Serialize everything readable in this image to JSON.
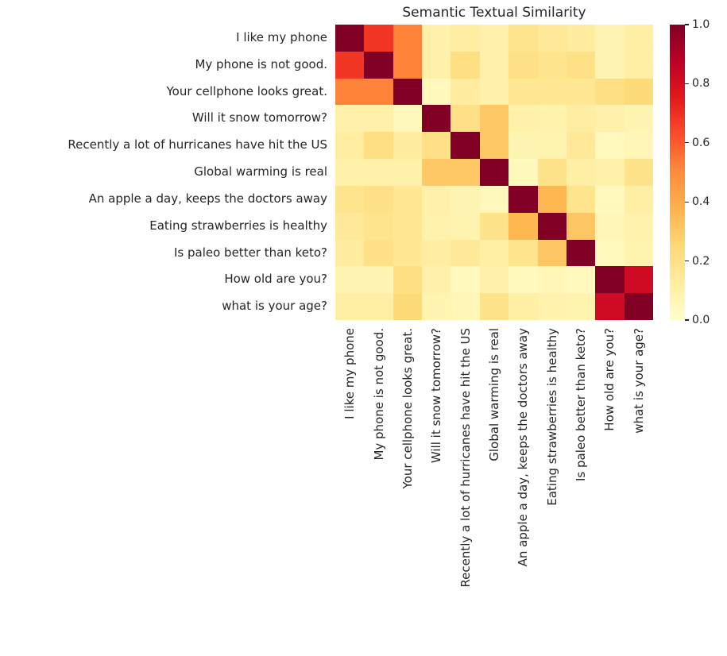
{
  "title": "Semantic Textual Similarity",
  "colors": {
    "text": "#262626",
    "background": "#ffffff"
  },
  "chart_data": {
    "type": "heatmap",
    "title": "Semantic Textual Similarity",
    "categories": [
      "I like my phone",
      "My phone is not good.",
      "Your cellphone looks great.",
      "Will it snow tomorrow?",
      "Recently a lot of hurricanes have hit the US",
      "Global warming is real",
      "An apple a day, keeps the doctors away",
      "Eating strawberries is healthy",
      "Is paleo better than keto?",
      "How old are you?",
      "what is your age?"
    ],
    "x_categories_same_as_y": true,
    "x_tick_label_rotation_deg": 90,
    "values": [
      [
        1.0,
        0.68,
        0.52,
        0.1,
        0.12,
        0.1,
        0.18,
        0.15,
        0.13,
        0.07,
        0.11
      ],
      [
        0.68,
        1.0,
        0.52,
        0.1,
        0.21,
        0.1,
        0.2,
        0.18,
        0.2,
        0.07,
        0.11
      ],
      [
        0.52,
        0.52,
        1.0,
        0.05,
        0.13,
        0.1,
        0.16,
        0.16,
        0.16,
        0.21,
        0.24
      ],
      [
        0.1,
        0.1,
        0.05,
        1.0,
        0.2,
        0.3,
        0.1,
        0.09,
        0.12,
        0.1,
        0.07
      ],
      [
        0.12,
        0.21,
        0.13,
        0.2,
        1.0,
        0.3,
        0.07,
        0.08,
        0.15,
        0.04,
        0.06
      ],
      [
        0.1,
        0.1,
        0.1,
        0.3,
        0.3,
        1.0,
        0.05,
        0.19,
        0.11,
        0.1,
        0.19
      ],
      [
        0.18,
        0.2,
        0.16,
        0.1,
        0.07,
        0.05,
        1.0,
        0.36,
        0.18,
        0.04,
        0.11
      ],
      [
        0.15,
        0.18,
        0.16,
        0.09,
        0.08,
        0.19,
        0.36,
        1.0,
        0.31,
        0.06,
        0.09
      ],
      [
        0.13,
        0.2,
        0.16,
        0.12,
        0.15,
        0.11,
        0.18,
        0.31,
        1.0,
        0.04,
        0.08
      ],
      [
        0.07,
        0.07,
        0.21,
        0.1,
        0.04,
        0.1,
        0.04,
        0.06,
        0.04,
        1.0,
        0.82
      ],
      [
        0.11,
        0.11,
        0.24,
        0.07,
        0.06,
        0.19,
        0.11,
        0.09,
        0.08,
        0.82,
        1.0
      ]
    ],
    "vmin": 0.0,
    "vmax": 1.0,
    "grid": false,
    "legend": false,
    "colormap": "YlOrRd",
    "colormap_stops": [
      {
        "pos": 0.0,
        "color": "#ffffcc"
      },
      {
        "pos": 0.125,
        "color": "#ffeda0"
      },
      {
        "pos": 0.25,
        "color": "#fed976"
      },
      {
        "pos": 0.375,
        "color": "#feb24c"
      },
      {
        "pos": 0.5,
        "color": "#fd8d3c"
      },
      {
        "pos": 0.625,
        "color": "#fc4e2a"
      },
      {
        "pos": 0.75,
        "color": "#e31a1c"
      },
      {
        "pos": 0.875,
        "color": "#bd0026"
      },
      {
        "pos": 1.0,
        "color": "#800026"
      }
    ],
    "colorbar": {
      "position": "right",
      "tick_values": [
        0.0,
        0.2,
        0.4,
        0.6,
        0.8,
        1.0
      ],
      "tick_labels": [
        "0.0",
        "0.2",
        "0.4",
        "0.6",
        "0.8",
        "1.0"
      ]
    }
  }
}
